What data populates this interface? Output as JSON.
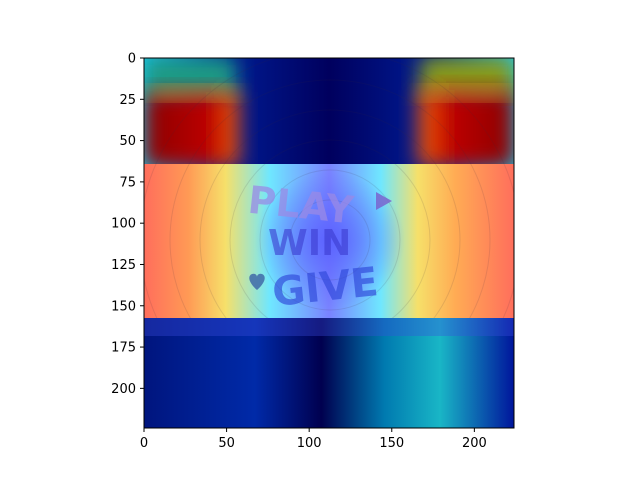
{
  "chart_data": {
    "type": "heatmap",
    "title": "",
    "xlabel": "",
    "ylabel": "",
    "xlim": [
      0,
      224
    ],
    "ylim": [
      224,
      0
    ],
    "x_ticks": [
      0,
      50,
      100,
      150,
      200
    ],
    "y_ticks": [
      0,
      25,
      50,
      75,
      100,
      125,
      150,
      175,
      200
    ],
    "colormap": "jet",
    "grid": false,
    "legend": "none",
    "underlay_image": {
      "band_y_range": [
        64,
        157
      ],
      "text_lines": [
        "PLAY",
        "WIN",
        "GIVE"
      ]
    },
    "heat_regions": [
      {
        "name": "top-left-hot",
        "x": [
          0,
          55
        ],
        "y": [
          35,
          150
        ],
        "level": "high"
      },
      {
        "name": "top-right-hot",
        "x": [
          170,
          224
        ],
        "y": [
          35,
          150
        ],
        "level": "high"
      },
      {
        "name": "center-column-cool",
        "x": [
          60,
          165
        ],
        "y": [
          0,
          224
        ],
        "level": "low"
      },
      {
        "name": "bottom-cool",
        "x": [
          0,
          224
        ],
        "y": [
          160,
          224
        ],
        "level": "low"
      }
    ]
  },
  "colors": {
    "hot_red": "#b01000",
    "orange": "#ff8a2a",
    "yellow": "#f3e24a",
    "cyan": "#47d6f0",
    "deep_blue": "#00087a",
    "teal": "#1f9a8a",
    "olive": "#8b9a1c"
  }
}
